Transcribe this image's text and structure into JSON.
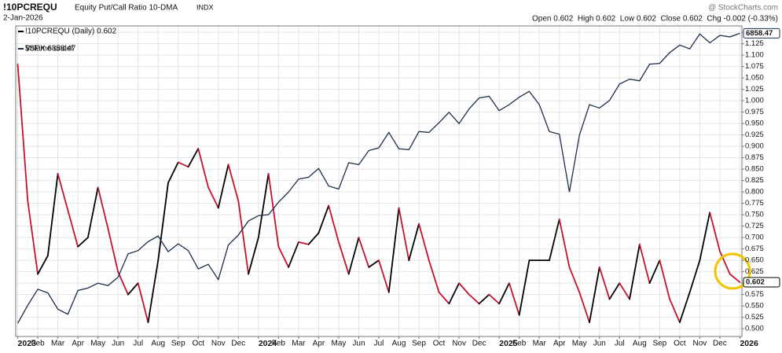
{
  "chart_data": {
    "type": "line",
    "symbol": "!10PCREQU",
    "title": "Equity Put/Call Ratio 10-DMA",
    "exchange": "INDX",
    "date": "2-Jan-2026",
    "watermark": "@ StockCharts.com",
    "quote": "Open 0.602  High 0.602  Low 0.602  Close 0.602  Chg -0.002 (-0.33%)",
    "legend_extra": "Volume undef",
    "xlim": [
      -0.1,
      36.1
    ],
    "xticks": [
      {
        "value": 0,
        "label": "2023"
      },
      {
        "value": 1,
        "label": "Feb"
      },
      {
        "value": 2,
        "label": "Mar"
      },
      {
        "value": 3,
        "label": "Apr"
      },
      {
        "value": 4,
        "label": "May"
      },
      {
        "value": 5,
        "label": "Jun"
      },
      {
        "value": 6,
        "label": "Jul"
      },
      {
        "value": 7,
        "label": "Aug"
      },
      {
        "value": 8,
        "label": "Sep"
      },
      {
        "value": 9,
        "label": "Oct"
      },
      {
        "value": 10,
        "label": "Nov"
      },
      {
        "value": 11,
        "label": "Dec"
      },
      {
        "value": 12,
        "label": "2024"
      },
      {
        "value": 13,
        "label": "Feb"
      },
      {
        "value": 14,
        "label": "Mar"
      },
      {
        "value": 15,
        "label": "Apr"
      },
      {
        "value": 16,
        "label": "May"
      },
      {
        "value": 17,
        "label": "Jun"
      },
      {
        "value": 18,
        "label": "Jul"
      },
      {
        "value": 19,
        "label": "Aug"
      },
      {
        "value": 20,
        "label": "Sep"
      },
      {
        "value": 21,
        "label": "Oct"
      },
      {
        "value": 22,
        "label": "Nov"
      },
      {
        "value": 23,
        "label": "Dec"
      },
      {
        "value": 24,
        "label": "2025"
      },
      {
        "value": 25,
        "label": "Feb"
      },
      {
        "value": 26,
        "label": "Mar"
      },
      {
        "value": 27,
        "label": "Apr"
      },
      {
        "value": 28,
        "label": "May"
      },
      {
        "value": 29,
        "label": "Jun"
      },
      {
        "value": 30,
        "label": "Jul"
      },
      {
        "value": 31,
        "label": "Aug"
      },
      {
        "value": 32,
        "label": "Sep"
      },
      {
        "value": 33,
        "label": "Oct"
      },
      {
        "value": 34,
        "label": "Nov"
      },
      {
        "value": 35,
        "label": "Dec"
      },
      {
        "value": 36,
        "label": "2026"
      }
    ],
    "ylim": [
      0.483,
      1.164
    ],
    "yticks": [
      {
        "value": 0.5,
        "label": "0.500"
      },
      {
        "value": 0.525,
        "label": "0.525"
      },
      {
        "value": 0.55,
        "label": "0.550"
      },
      {
        "value": 0.575,
        "label": "0.575"
      },
      {
        "value": 0.6,
        "label": "0.600"
      },
      {
        "value": 0.625,
        "label": "0.625"
      },
      {
        "value": 0.65,
        "label": "0.650"
      },
      {
        "value": 0.675,
        "label": "0.675"
      },
      {
        "value": 0.7,
        "label": "0.700"
      },
      {
        "value": 0.725,
        "label": "0.725"
      },
      {
        "value": 0.75,
        "label": "0.750"
      },
      {
        "value": 0.775,
        "label": "0.775"
      },
      {
        "value": 0.8,
        "label": "0.800"
      },
      {
        "value": 0.825,
        "label": "0.825"
      },
      {
        "value": 0.85,
        "label": "0.850"
      },
      {
        "value": 0.875,
        "label": "0.875"
      },
      {
        "value": 0.9,
        "label": "0.900"
      },
      {
        "value": 0.925,
        "label": "0.925"
      },
      {
        "value": 0.95,
        "label": "0.950"
      },
      {
        "value": 0.975,
        "label": "0.975"
      },
      {
        "value": 1.0,
        "label": "1.000"
      },
      {
        "value": 1.025,
        "label": "1.025"
      },
      {
        "value": 1.05,
        "label": "1.050"
      },
      {
        "value": 1.075,
        "label": "1.075"
      },
      {
        "value": 1.1,
        "label": "1.100"
      },
      {
        "value": 1.125,
        "label": "1.125"
      },
      {
        "value": 1.15,
        "label": "1.150"
      }
    ],
    "y2lim": [
      3750,
      6960
    ],
    "y2_log": true,
    "grid": true,
    "x": [
      0,
      0.5,
      1,
      1.5,
      2,
      2.5,
      3,
      3.5,
      4,
      4.5,
      5,
      5.5,
      6,
      6.5,
      7,
      7.5,
      8,
      8.5,
      9,
      9.5,
      10,
      10.5,
      11,
      11.5,
      12,
      12.5,
      13,
      13.5,
      14,
      14.5,
      15,
      15.5,
      16,
      16.5,
      17,
      17.5,
      18,
      18.5,
      19,
      19.5,
      20,
      20.5,
      21,
      21.5,
      22,
      22.5,
      23,
      23.5,
      24,
      24.5,
      25,
      25.5,
      26,
      26.5,
      27,
      27.5,
      28,
      28.5,
      29,
      29.5,
      30,
      30.5,
      31,
      31.5,
      32,
      32.5,
      33,
      33.5,
      34,
      34.5,
      35,
      35.5,
      36
    ],
    "series": [
      {
        "name": "!10PCREQU (Daily) 0.602",
        "color": "#000000",
        "down_color": "#c8102e",
        "axis": "y",
        "values": [
          1.08,
          0.78,
          0.62,
          0.66,
          0.84,
          0.76,
          0.68,
          0.7,
          0.81,
          0.72,
          0.625,
          0.575,
          0.6,
          0.514,
          0.65,
          0.82,
          0.865,
          0.855,
          0.895,
          0.81,
          0.765,
          0.86,
          0.78,
          0.62,
          0.7,
          0.84,
          0.68,
          0.635,
          0.69,
          0.685,
          0.71,
          0.77,
          0.69,
          0.62,
          0.7,
          0.635,
          0.65,
          0.58,
          0.765,
          0.65,
          0.73,
          0.65,
          0.58,
          0.555,
          0.6,
          0.575,
          0.555,
          0.575,
          0.555,
          0.6,
          0.53,
          0.65,
          0.65,
          0.65,
          0.74,
          0.635,
          0.58,
          0.514,
          0.635,
          0.565,
          0.6,
          0.565,
          0.685,
          0.6,
          0.65,
          0.565,
          0.514,
          0.58,
          0.65,
          0.755,
          0.67,
          0.62,
          0.602
        ]
      },
      {
        "name": "$SPX 6858.47",
        "color": "#1c2e4a",
        "axis": "y2",
        "values": [
          3850,
          3990,
          4120,
          4090,
          3960,
          3920,
          4110,
          4130,
          4170,
          4150,
          4220,
          4420,
          4450,
          4530,
          4580,
          4440,
          4510,
          4450,
          4290,
          4330,
          4200,
          4500,
          4590,
          4720,
          4770,
          4780,
          4900,
          5000,
          5130,
          5150,
          5240,
          5060,
          5030,
          5300,
          5280,
          5430,
          5460,
          5630,
          5450,
          5440,
          5640,
          5630,
          5740,
          5860,
          5730,
          5900,
          6030,
          6050,
          5880,
          5950,
          6040,
          6110,
          5950,
          5640,
          5610,
          5000,
          5600,
          5950,
          5910,
          6000,
          6200,
          6260,
          6240,
          6450,
          6460,
          6600,
          6700,
          6650,
          6850,
          6730,
          6830,
          6810,
          6858.47
        ]
      }
    ]
  }
}
